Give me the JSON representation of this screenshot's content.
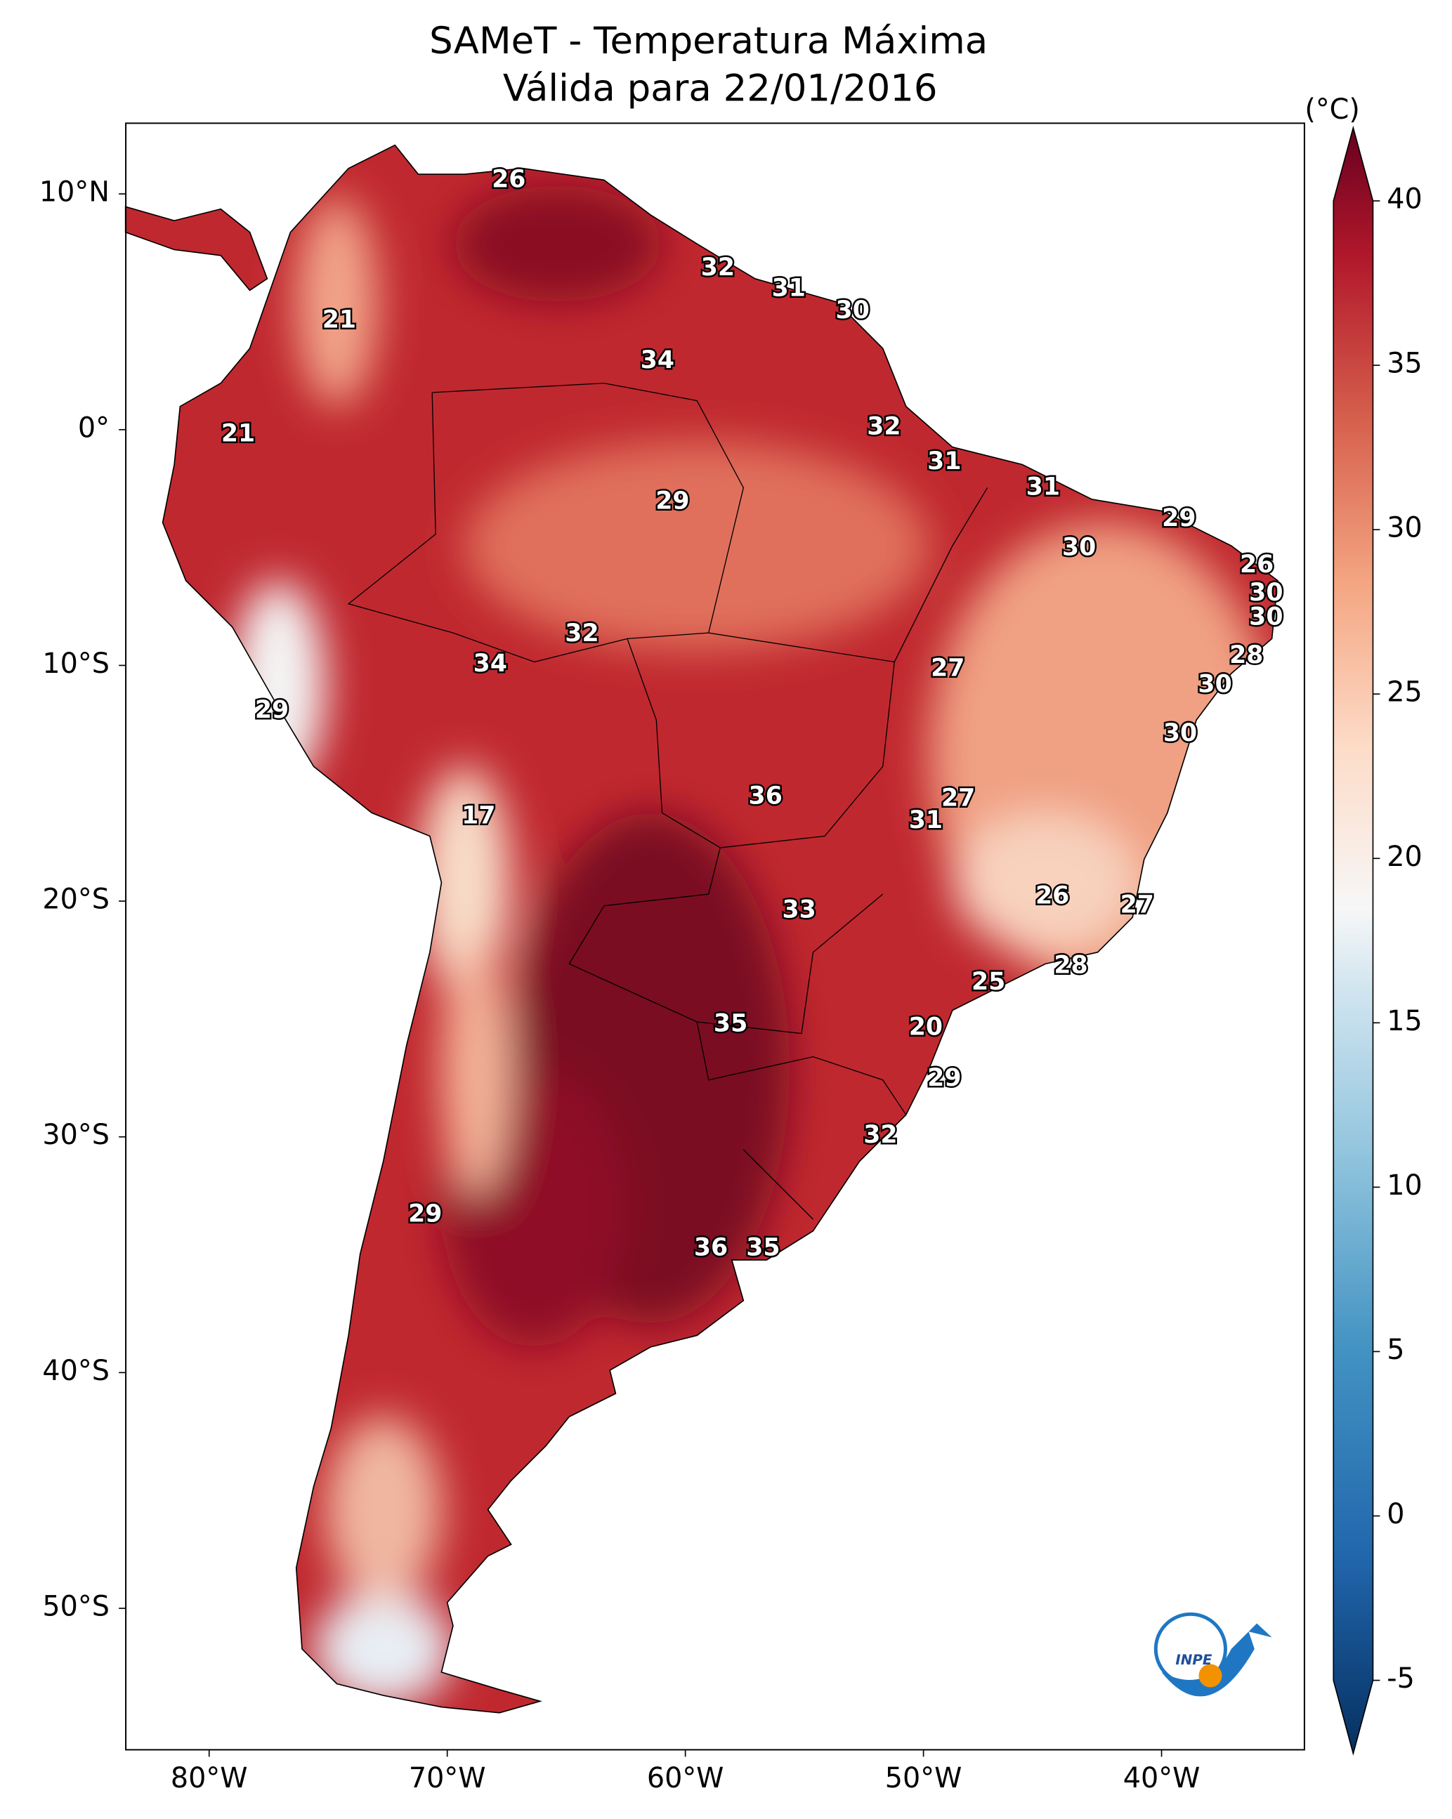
{
  "map": {
    "title": "SAMeT - Temperatura Máxima",
    "subtitle": "Válida para 22/01/2016",
    "xlim": [
      -83.5,
      -34
    ],
    "ylim": [
      -56,
      13
    ],
    "xticks": [
      {
        "value": -80,
        "label": "80°W"
      },
      {
        "value": -70,
        "label": "70°W"
      },
      {
        "value": -60,
        "label": "60°W"
      },
      {
        "value": -50,
        "label": "50°W"
      },
      {
        "value": -40,
        "label": "40°W"
      }
    ],
    "yticks": [
      {
        "value": 10,
        "label": "10°N"
      },
      {
        "value": 0,
        "label": "0°"
      },
      {
        "value": -10,
        "label": "10°S"
      },
      {
        "value": -20,
        "label": "20°S"
      },
      {
        "value": -30,
        "label": "30°S"
      },
      {
        "value": -40,
        "label": "40°S"
      },
      {
        "value": -50,
        "label": "50°S"
      }
    ],
    "colorbar": {
      "unit": "(°C)",
      "clim": [
        -5,
        40
      ],
      "ticks": [
        -5,
        0,
        5,
        10,
        15,
        20,
        25,
        30,
        35,
        40
      ]
    },
    "contour_labels": [
      26,
      32,
      31,
      30,
      21,
      34,
      21,
      32,
      31,
      31,
      29,
      29,
      30,
      26,
      30,
      30,
      32,
      28,
      34,
      27,
      30,
      29,
      30,
      36,
      27,
      17,
      31,
      26,
      27,
      33,
      28,
      25,
      35,
      20,
      29,
      32,
      29,
      36,
      35
    ],
    "logo_text": "INPE"
  }
}
